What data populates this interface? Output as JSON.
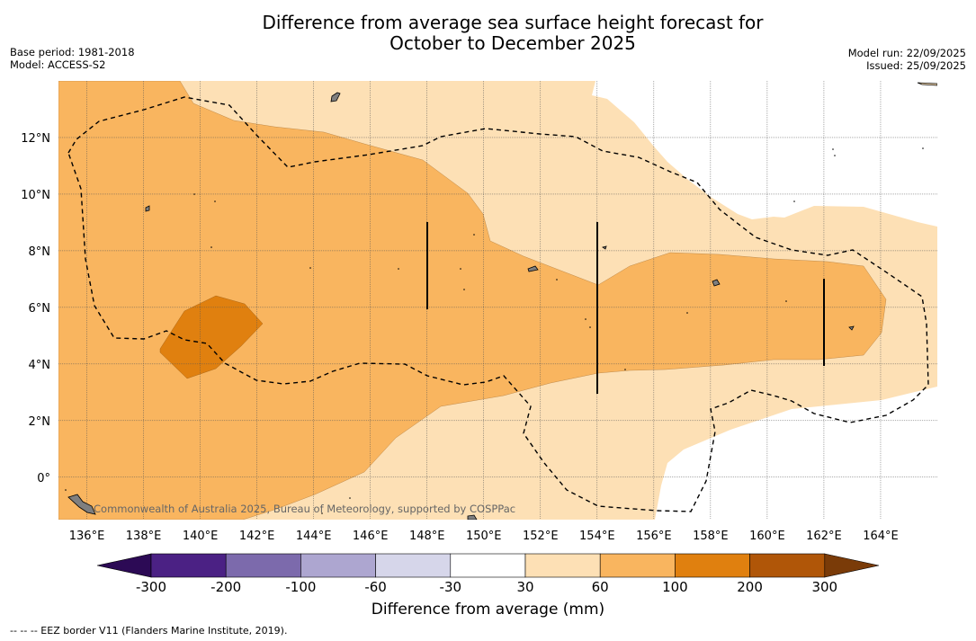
{
  "title": {
    "line1": "Difference from average sea surface height forecast for",
    "line2": "October to December 2025"
  },
  "meta": {
    "base_period": "Base period: 1981-2018",
    "model": "Model: ACCESS-S2",
    "model_run": "Model run: 22/09/2025",
    "issued": "Issued: 25/09/2025"
  },
  "map": {
    "x_ticks": [
      "136°E",
      "138°E",
      "140°E",
      "142°E",
      "144°E",
      "146°E",
      "148°E",
      "150°E",
      "152°E",
      "154°E",
      "156°E",
      "158°E",
      "160°E",
      "162°E",
      "164°E"
    ],
    "y_ticks": [
      "12°N",
      "10°N",
      "8°N",
      "6°N",
      "4°N",
      "2°N",
      "0°"
    ],
    "x_tick_values": [
      136,
      138,
      140,
      142,
      144,
      146,
      148,
      150,
      152,
      154,
      156,
      158,
      160,
      162,
      164
    ],
    "y_tick_values": [
      12,
      10,
      8,
      6,
      4,
      2,
      0
    ],
    "lon_range": [
      135,
      166
    ],
    "lat_range": [
      -1.5,
      14
    ],
    "watermark": "Commonwealth of Australia 2025, Bureau of Meteorology, supported by COSPPac"
  },
  "colorbar": {
    "ticks": [
      "-300",
      "-200",
      "-100",
      "-60",
      "-30",
      "30",
      "60",
      "100",
      "200",
      "300"
    ],
    "colors": [
      "#4b2184",
      "#7c6aac",
      "#ada6d0",
      "#d6d6ea",
      "#ffffff",
      "#fde0b5",
      "#f9b55f",
      "#e0800f",
      "#b05608"
    ],
    "extend_low_color": "#2c0a55",
    "extend_high_color": "#7a3b08",
    "label": "Difference from average (mm)"
  },
  "footnote": "--  --  -- EEZ border V11 (Flanders Marine Institute, 2019)."
}
